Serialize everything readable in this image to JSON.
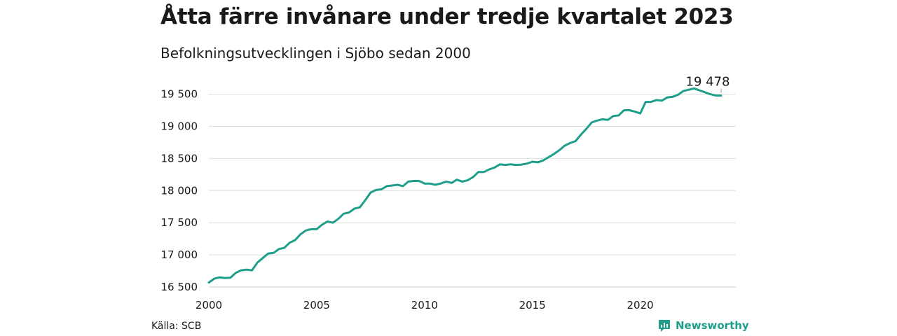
{
  "header": {
    "title": "Åtta färre invånare under tredje kvartalet 2023",
    "subtitle": "Befolkningsutvecklingen i Sjöbo sedan 2000"
  },
  "footer": {
    "source": "Källa: SCB",
    "brand": "Newsworthy"
  },
  "colors": {
    "line": "#1f9e8a",
    "grid": "#dddddd",
    "brand": "#1f9e8a"
  },
  "chart_data": {
    "type": "line",
    "title": "Åtta färre invånare under tredje kvartalet 2023",
    "subtitle": "Befolkningsutvecklingen i Sjöbo sedan 2000",
    "xlabel": "",
    "ylabel": "",
    "xlim": [
      2000,
      2024
    ],
    "ylim": [
      16500,
      19600
    ],
    "x_ticks": [
      2000,
      2005,
      2010,
      2015,
      2020
    ],
    "x_tick_labels": [
      "2000",
      "2005",
      "2010",
      "2015",
      "2020"
    ],
    "y_ticks": [
      16500,
      17000,
      17500,
      18000,
      18500,
      19000,
      19500
    ],
    "y_tick_labels": [
      "16 500",
      "17 000",
      "17 500",
      "18 000",
      "18 500",
      "19 000",
      "19 500"
    ],
    "grid": true,
    "annotation": {
      "x": 2023.75,
      "y": 19478,
      "label": "19 478"
    },
    "series": [
      {
        "x": [
          2000.0,
          2000.25,
          2000.5,
          2000.75,
          2001.0,
          2001.25,
          2001.5,
          2001.75,
          2002.0,
          2002.25,
          2002.5,
          2002.75,
          2003.0,
          2003.25,
          2003.5,
          2003.75,
          2004.0,
          2004.25,
          2004.5,
          2004.75,
          2005.0,
          2005.25,
          2005.5,
          2005.75,
          2006.0,
          2006.25,
          2006.5,
          2006.75,
          2007.0,
          2007.25,
          2007.5,
          2007.75,
          2008.0,
          2008.25,
          2008.5,
          2008.75,
          2009.0,
          2009.25,
          2009.5,
          2009.75,
          2010.0,
          2010.25,
          2010.5,
          2010.75,
          2011.0,
          2011.25,
          2011.5,
          2011.75,
          2012.0,
          2012.25,
          2012.5,
          2012.75,
          2013.0,
          2013.25,
          2013.5,
          2013.75,
          2014.0,
          2014.25,
          2014.5,
          2014.75,
          2015.0,
          2015.25,
          2015.5,
          2015.75,
          2016.0,
          2016.25,
          2016.5,
          2016.75,
          2017.0,
          2017.25,
          2017.5,
          2017.75,
          2018.0,
          2018.25,
          2018.5,
          2018.75,
          2019.0,
          2019.25,
          2019.5,
          2019.75,
          2020.0,
          2020.25,
          2020.5,
          2020.75,
          2021.0,
          2021.25,
          2021.5,
          2021.75,
          2022.0,
          2022.25,
          2022.5,
          2022.75,
          2023.0,
          2023.25,
          2023.5,
          2023.75
        ],
        "y": [
          16570,
          16630,
          16650,
          16640,
          16645,
          16720,
          16760,
          16770,
          16760,
          16880,
          16950,
          17020,
          17030,
          17090,
          17110,
          17190,
          17230,
          17320,
          17380,
          17400,
          17400,
          17470,
          17520,
          17500,
          17560,
          17640,
          17660,
          17720,
          17740,
          17850,
          17970,
          18010,
          18020,
          18070,
          18080,
          18090,
          18070,
          18140,
          18150,
          18150,
          18110,
          18110,
          18090,
          18110,
          18140,
          18120,
          18170,
          18140,
          18160,
          18210,
          18290,
          18290,
          18330,
          18360,
          18410,
          18400,
          18410,
          18400,
          18405,
          18420,
          18450,
          18440,
          18470,
          18520,
          18570,
          18630,
          18700,
          18740,
          18770,
          18870,
          18960,
          19060,
          19090,
          19110,
          19100,
          19160,
          19170,
          19250,
          19250,
          19230,
          19200,
          19380,
          19380,
          19410,
          19400,
          19450,
          19460,
          19490,
          19550,
          19570,
          19590,
          19560,
          19530,
          19500,
          19480,
          19478
        ]
      }
    ]
  }
}
